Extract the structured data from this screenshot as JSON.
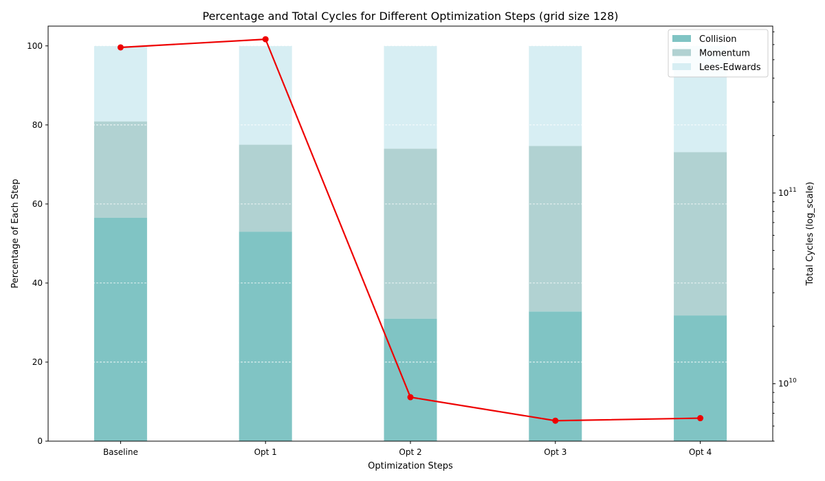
{
  "chart_data": {
    "type": "bar",
    "title": "Percentage and Total Cycles for Different Optimization Steps (grid size 128)",
    "xlabel": "Optimization Steps",
    "ylabel": "Percentage of Each Step",
    "y2label": "Total Cycles (log_scale)",
    "categories": [
      "Baseline",
      "Opt 1",
      "Opt 2",
      "Opt 3",
      "Opt 4"
    ],
    "stacked": true,
    "ylim": [
      0,
      105
    ],
    "yticks": [
      0,
      20,
      40,
      60,
      80,
      100
    ],
    "y2_scale": "log",
    "y2lim": [
      5000000000.0,
      750000000000.0
    ],
    "y2ticks": [
      {
        "value": 10000000000.0,
        "base": "10",
        "exp": "10"
      },
      {
        "value": 100000000000.0,
        "base": "10",
        "exp": "11"
      }
    ],
    "grid": "horizontal dashed",
    "legend_position": "top-right",
    "series": [
      {
        "name": "Collision",
        "color": "#80c4c4",
        "values": [
          56.5,
          53.0,
          31.0,
          32.8,
          31.8
        ]
      },
      {
        "name": "Momentum",
        "color": "#b1d2d2",
        "values": [
          24.4,
          22.0,
          43.0,
          41.9,
          41.3
        ]
      },
      {
        "name": "Lees-Edwards",
        "color": "#d7eef3",
        "values": [
          19.1,
          25.0,
          26.0,
          25.3,
          26.9
        ]
      }
    ],
    "line": {
      "color": "#ee0000",
      "axis": "secondary",
      "values": [
        580000000000.0,
        640000000000.0,
        8500000000.0,
        6400000000.0,
        6600000000.0
      ]
    }
  }
}
